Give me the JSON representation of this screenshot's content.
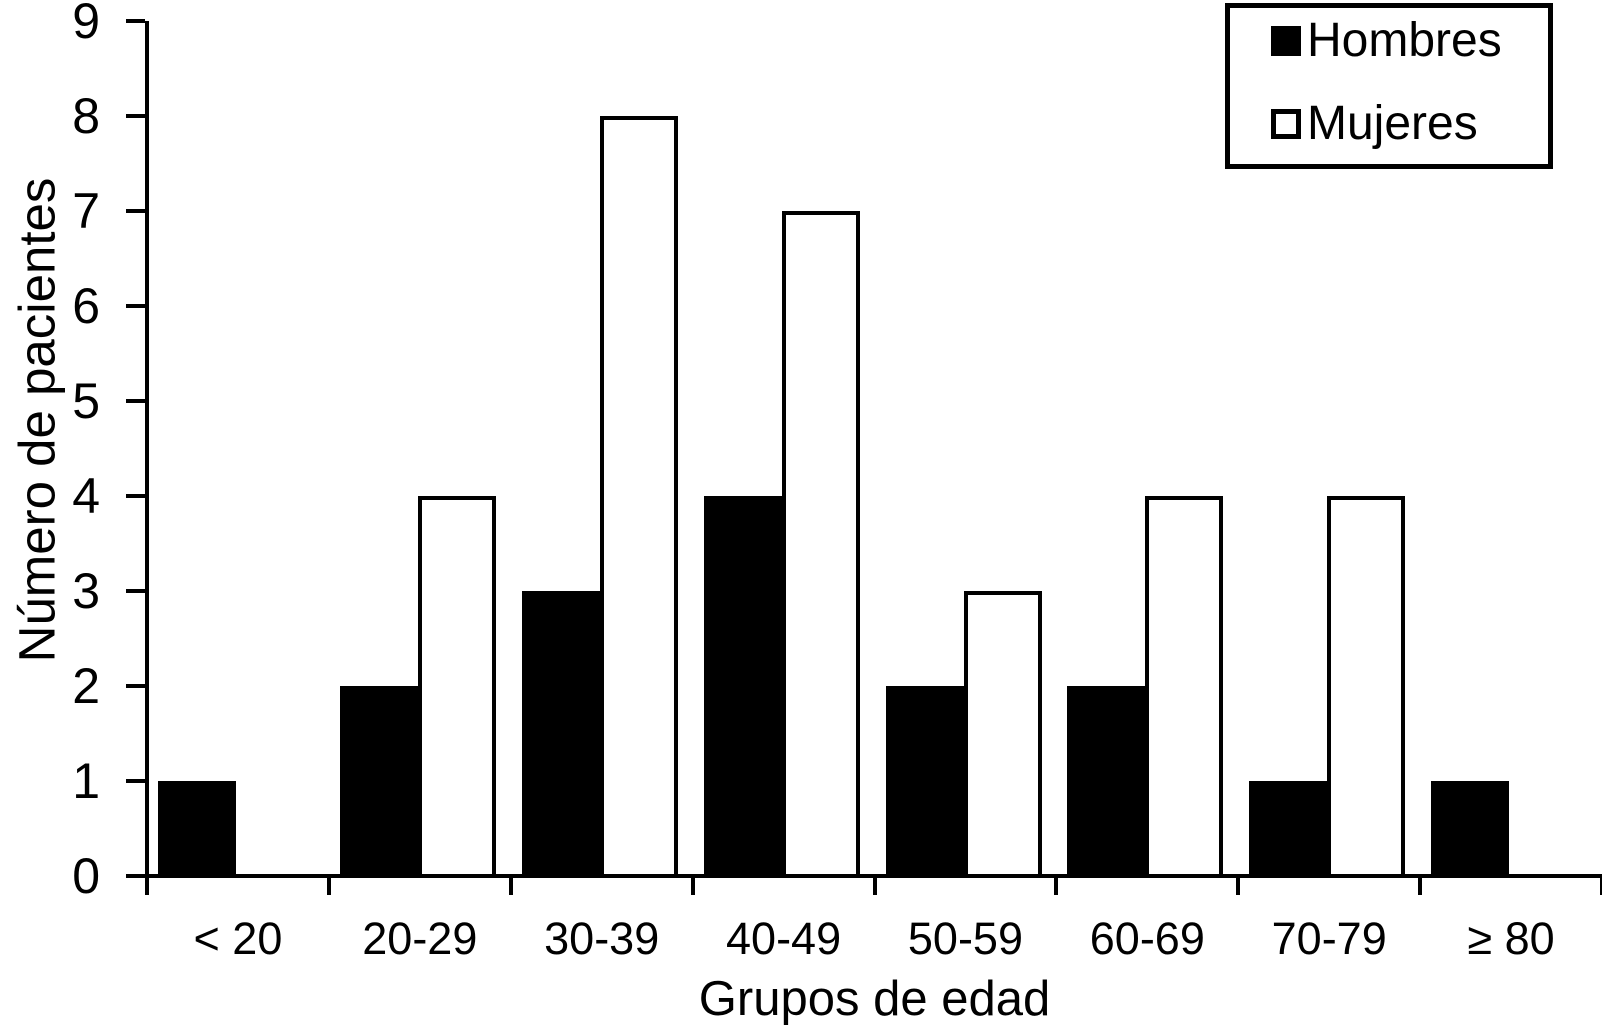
{
  "chart_data": {
    "type": "bar",
    "xlabel": "Grupos de edad",
    "ylabel": "Número de pacientes",
    "categories": [
      "< 20",
      "20-29",
      "30-39",
      "40-49",
      "50-59",
      "60-69",
      "70-79",
      "≥ 80"
    ],
    "series": [
      {
        "name": "Hombres",
        "color": "#000000",
        "values": [
          1,
          2,
          3,
          4,
          2,
          2,
          1,
          1
        ]
      },
      {
        "name": "Mujeres",
        "color": "#ffffff",
        "values": [
          0,
          4,
          8,
          7,
          3,
          4,
          4,
          0
        ]
      }
    ],
    "ylim": [
      0,
      9
    ],
    "yticks": [
      0,
      1,
      2,
      3,
      4,
      5,
      6,
      7,
      8,
      9
    ],
    "grid": false,
    "legend_position": "top-right",
    "axis_color": "#000000",
    "bar_border_color": "#000000",
    "background_color": "#ffffff"
  }
}
